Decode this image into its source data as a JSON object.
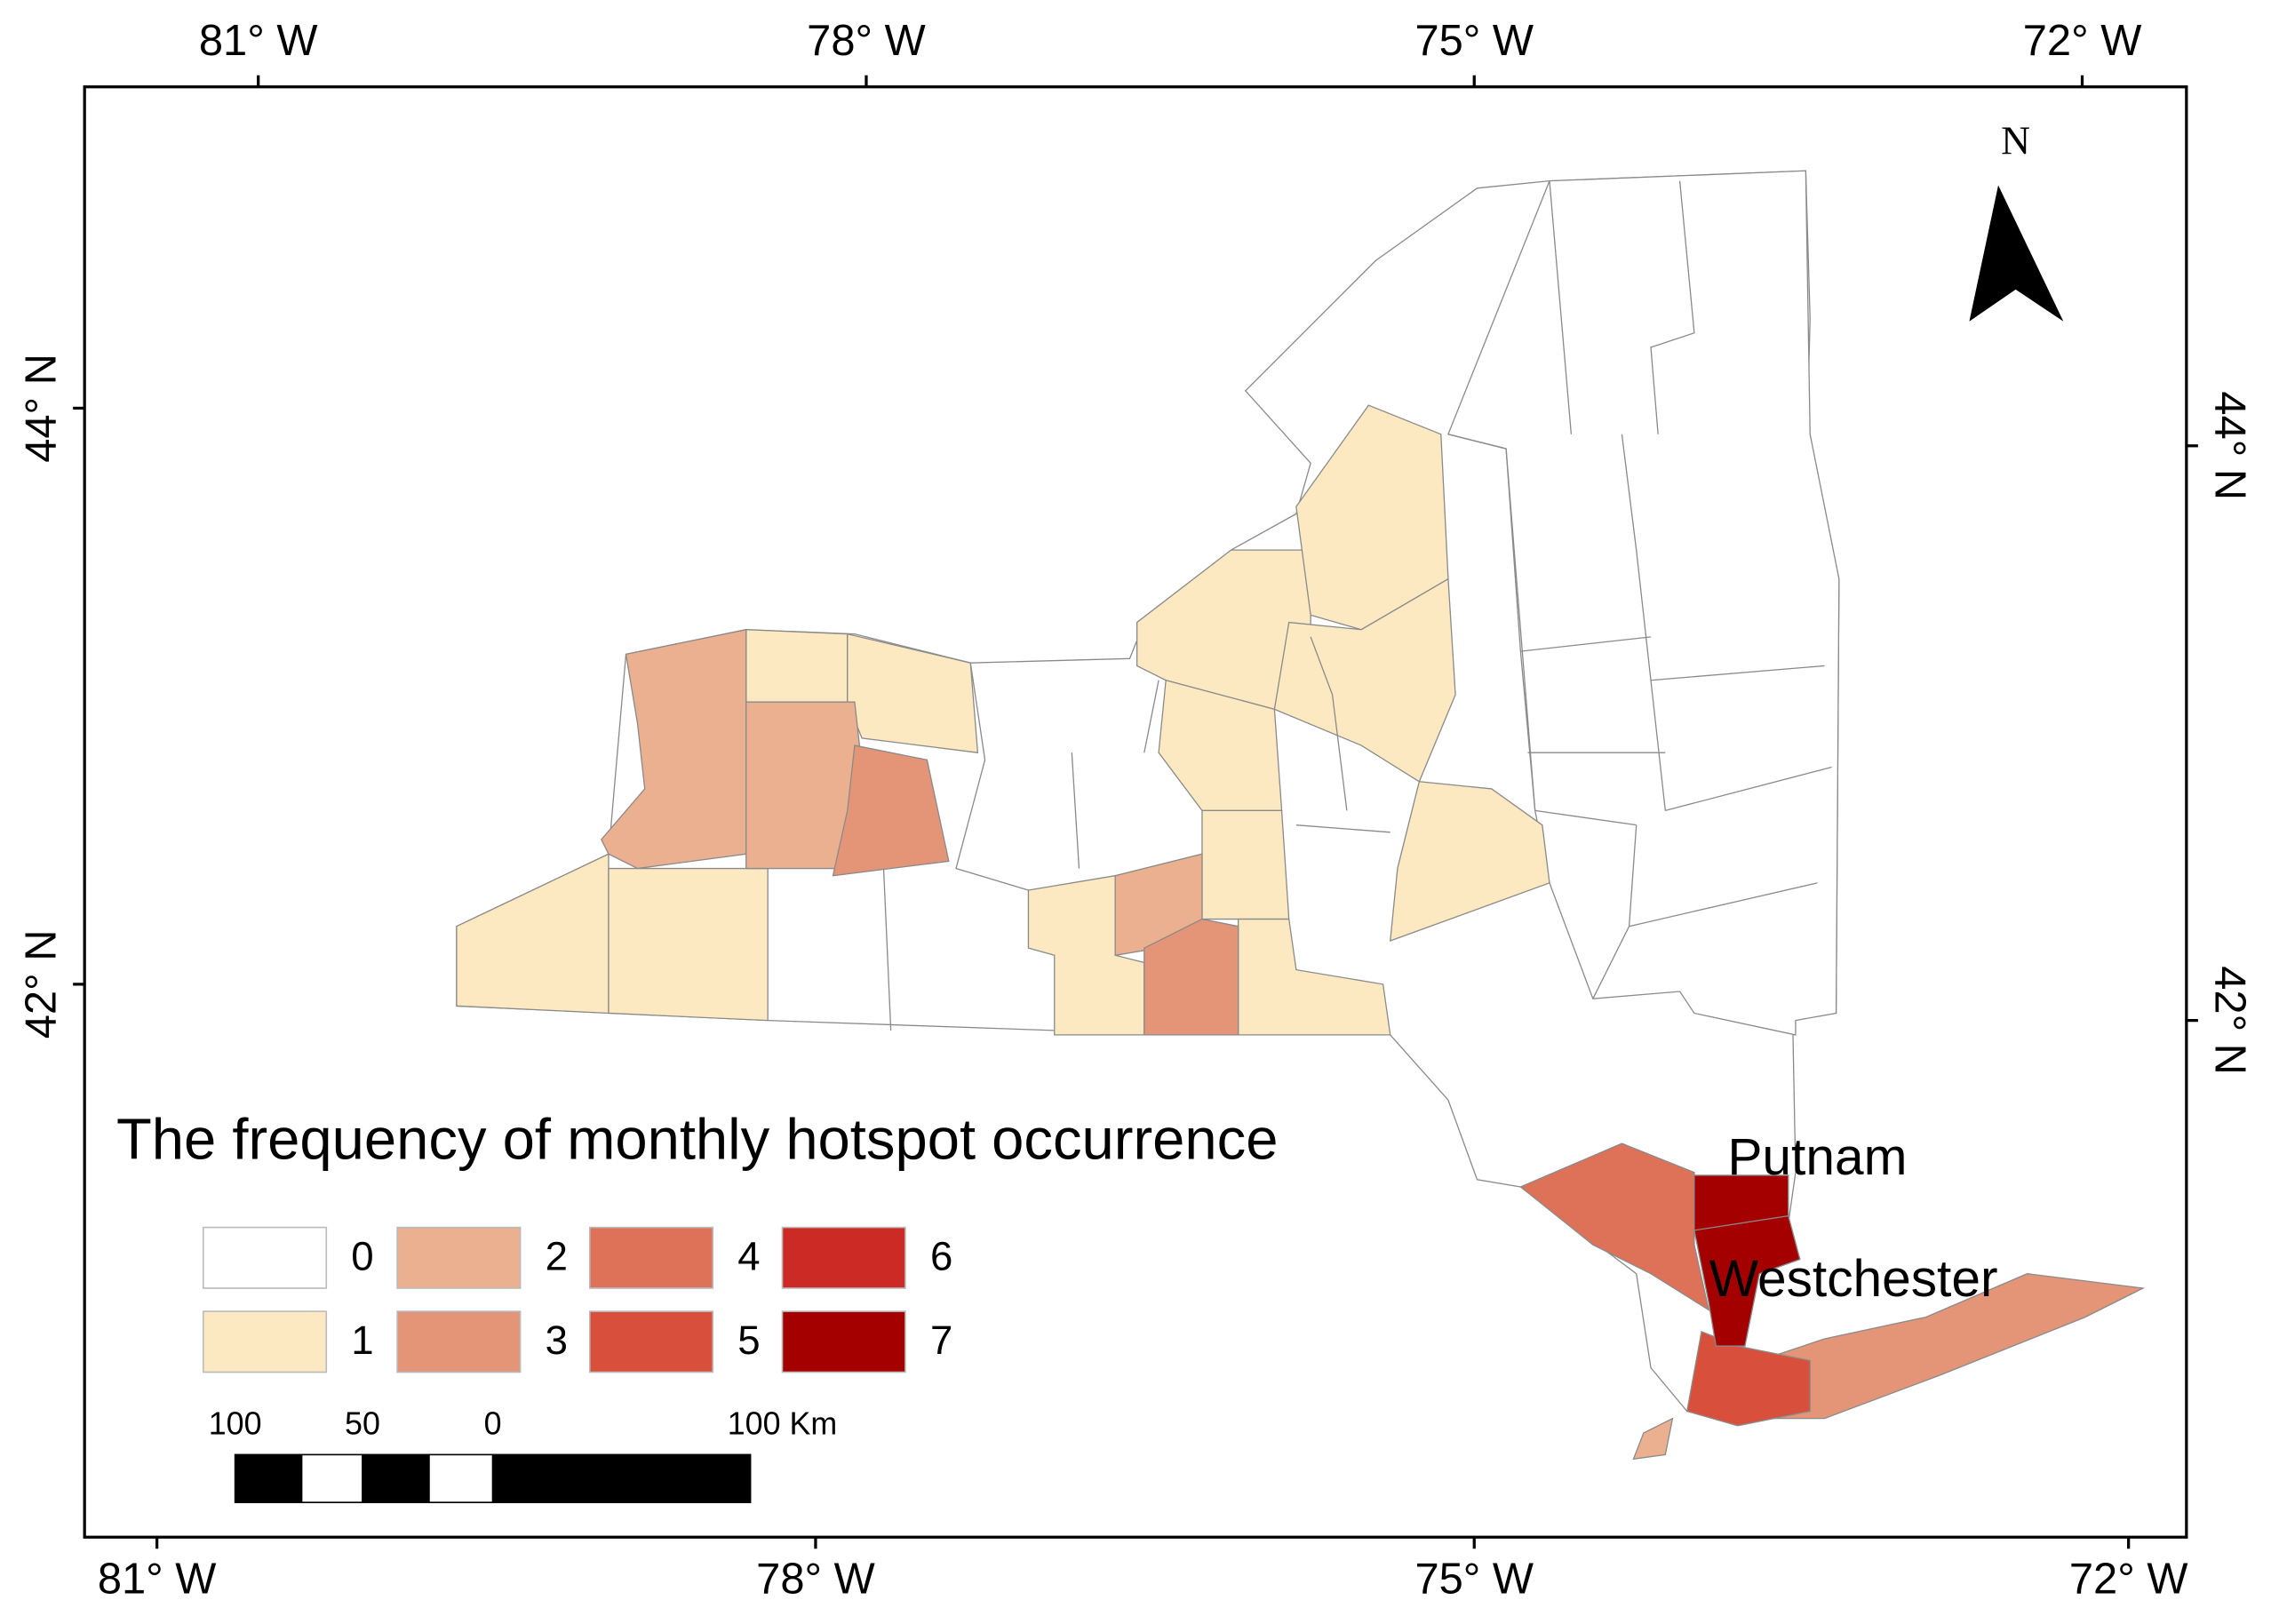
{
  "map": {
    "x_axis_top": [
      "81° W",
      "78° W",
      "75° W",
      "72° W"
    ],
    "x_axis_bottom": [
      "81° W",
      "78° W",
      "75° W",
      "72° W"
    ],
    "y_axis_left": [
      "44° N",
      "42° N"
    ],
    "y_axis_right": [
      "44° N",
      "42° N"
    ],
    "north": "N",
    "legend": {
      "title": "The frequency of monthly hotspot occurrence",
      "items": [
        {
          "value": 0,
          "color": "#ffffff"
        },
        {
          "value": 1,
          "color": "#fde9c1"
        },
        {
          "value": 2,
          "color": "#ebb08f"
        },
        {
          "value": 3,
          "color": "#e59577"
        },
        {
          "value": 4,
          "color": "#dd7258"
        },
        {
          "value": 5,
          "color": "#d8503b"
        },
        {
          "value": 6,
          "color": "#cc2b25"
        },
        {
          "value": 7,
          "color": "#a50000"
        }
      ]
    },
    "scale_bar": {
      "labels": [
        "100",
        "50",
        "0",
        "100 Km"
      ]
    },
    "places": [
      "Putnam",
      "Westchester"
    ],
    "regions": [
      {
        "value": 0
      },
      {
        "value": 1
      },
      {
        "value": 1
      },
      {
        "value": 1
      },
      {
        "value": 1
      },
      {
        "value": 1
      },
      {
        "value": 1
      },
      {
        "value": 1
      },
      {
        "value": 1
      },
      {
        "value": 1
      },
      {
        "value": 1
      },
      {
        "value": 1
      },
      {
        "value": 1
      },
      {
        "value": 2
      },
      {
        "value": 2
      },
      {
        "value": 2
      },
      {
        "value": 3
      },
      {
        "value": 3
      },
      {
        "value": 3
      },
      {
        "value": 2
      },
      {
        "value": 4
      },
      {
        "value": 5
      },
      {
        "value": 7
      },
      {
        "value": 7
      }
    ]
  }
}
